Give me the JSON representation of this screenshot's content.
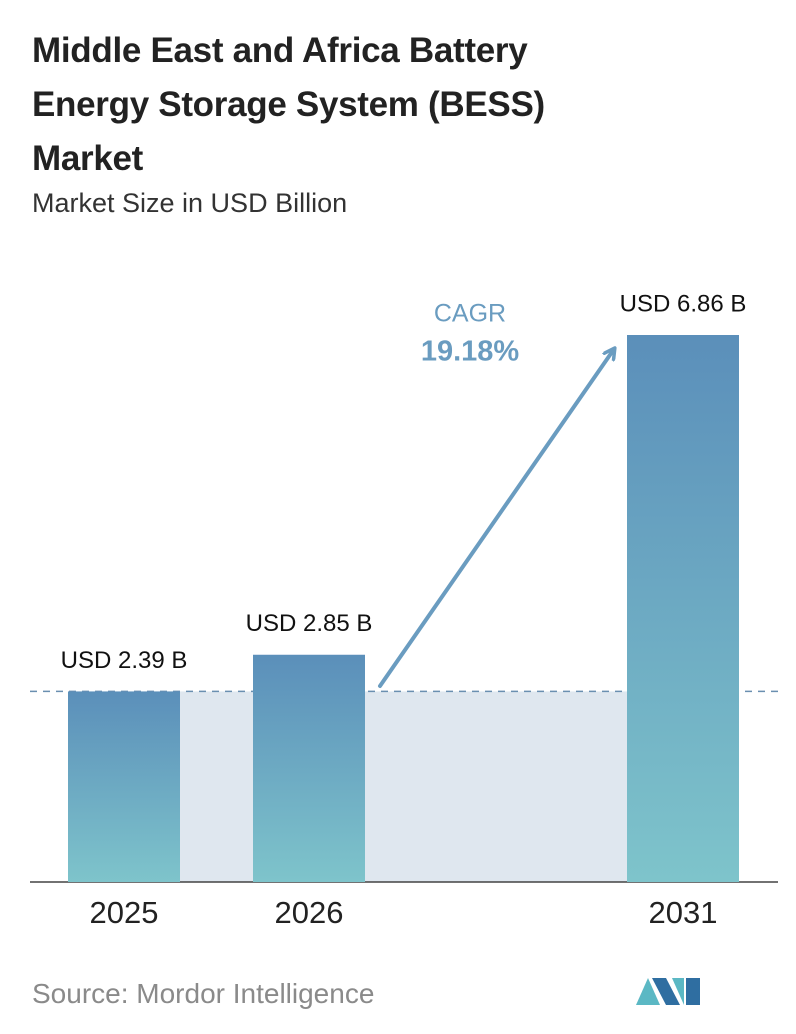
{
  "chart_data": {
    "type": "bar",
    "title": "Middle East and Africa Battery Energy Storage System (BESS) Market",
    "subtitle": "Market Size in USD Billion",
    "categories": [
      "2025",
      "2026",
      "2031"
    ],
    "values": [
      2.39,
      2.85,
      6.86
    ],
    "value_labels": [
      "USD 2.39 B",
      "USD 2.85 B",
      "USD 6.86 B"
    ],
    "annotation": {
      "label": "CAGR",
      "value": "19.18%"
    },
    "source": "Source:  Mordor Intelligence"
  }
}
